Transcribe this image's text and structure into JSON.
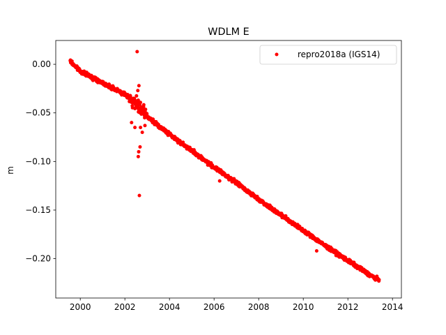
{
  "chart_data": {
    "type": "scatter",
    "title": "WDLM E",
    "xlabel": "",
    "ylabel": "m",
    "xlim": [
      1998.9,
      2014.4
    ],
    "ylim": [
      -0.2405,
      0.0245
    ],
    "xticks": [
      2000,
      2002,
      2004,
      2006,
      2008,
      2010,
      2012,
      2014
    ],
    "xtick_labels": [
      "2000",
      "2002",
      "2004",
      "2006",
      "2008",
      "2010",
      "2012",
      "2014"
    ],
    "yticks": [
      0.0,
      -0.05,
      -0.1,
      -0.15,
      -0.2
    ],
    "ytick_labels": [
      "0.00",
      "−0.05",
      "−0.10",
      "−0.15",
      "−0.20"
    ],
    "grid": false,
    "legend_position": "top-right",
    "series": [
      {
        "name": "repro2018a (IGS14)",
        "color": "#ff0000",
        "marker": "circle",
        "trend": {
          "x": [
            1999.55,
            2000.0,
            2001.0,
            2002.0,
            2002.3,
            2003.0,
            2004.0,
            2005.0,
            2006.0,
            2007.0,
            2008.0,
            2009.0,
            2010.0,
            2011.0,
            2012.0,
            2013.0,
            2013.4
          ],
          "y": [
            0.003,
            -0.007,
            -0.019,
            -0.031,
            -0.036,
            -0.054,
            -0.072,
            -0.089,
            -0.106,
            -0.122,
            -0.139,
            -0.155,
            -0.171,
            -0.187,
            -0.202,
            -0.217,
            -0.222
          ]
        },
        "outliers": {
          "x": [
            2002.55,
            2002.65,
            2002.62,
            2002.68,
            2002.6,
            2002.63,
            2002.58,
            2002.7,
            2002.3,
            2002.45,
            2002.9,
            2002.78,
            2005.1,
            2006.25,
            2010.6,
            2011.1
          ],
          "y": [
            0.013,
            -0.135,
            -0.09,
            -0.085,
            -0.095,
            -0.022,
            -0.027,
            -0.065,
            -0.06,
            -0.065,
            -0.063,
            -0.07,
            -0.088,
            -0.12,
            -0.192,
            -0.19
          ]
        }
      }
    ]
  }
}
